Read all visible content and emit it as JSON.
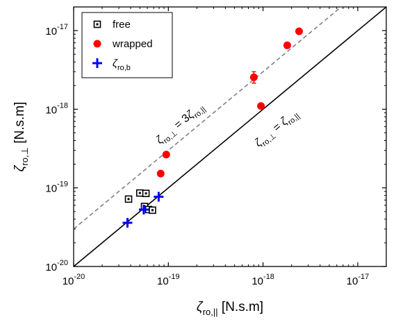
{
  "chart_data": {
    "type": "scatter",
    "xscale": "log",
    "yscale": "log",
    "xlim": [
      1e-20,
      2e-17
    ],
    "ylim": [
      1e-20,
      2e-17
    ],
    "xlabel": {
      "symbol": "ζ",
      "sub": "ro,||",
      "unit": " [N.s.m]"
    },
    "ylabel": {
      "symbol": "ζ",
      "sub": "ro,⊥",
      "unit": " [N.s.m]"
    },
    "xticks": [
      {
        "value": 1e-20,
        "mant": "10",
        "exp": "-20"
      },
      {
        "value": 1e-19,
        "mant": "10",
        "exp": "-19"
      },
      {
        "value": 1e-18,
        "mant": "10",
        "exp": "-18"
      },
      {
        "value": 1e-17,
        "mant": "10",
        "exp": "-17"
      }
    ],
    "yticks": [
      {
        "value": 1e-20,
        "mant": "10",
        "exp": "-20"
      },
      {
        "value": 1e-19,
        "mant": "10",
        "exp": "-19"
      },
      {
        "value": 1e-18,
        "mant": "10",
        "exp": "-18"
      },
      {
        "value": 1e-17,
        "mant": "10",
        "exp": "-17"
      }
    ],
    "series": [
      {
        "name": "free",
        "marker": "open-square",
        "color": "#000000",
        "points": [
          {
            "x": 3.8e-20,
            "y": 7.2e-20
          },
          {
            "x": 5e-20,
            "y": 8.6e-20
          },
          {
            "x": 5.8e-20,
            "y": 8.5e-20
          },
          {
            "x": 5.6e-20,
            "y": 5.8e-20
          },
          {
            "x": 6.2e-20,
            "y": 5.3e-20
          },
          {
            "x": 6.8e-20,
            "y": 5.2e-20
          }
        ]
      },
      {
        "name": "wrapped",
        "marker": "filled-circle",
        "color": "#ff0000",
        "points": [
          {
            "x": 8.3e-20,
            "y": 1.52e-19
          },
          {
            "x": 9.5e-20,
            "y": 2.65e-19
          },
          {
            "x": 8e-19,
            "y": 2.55e-18,
            "yerr_low": 2.15e-18,
            "yerr_high": 3e-18
          },
          {
            "x": 9.5e-19,
            "y": 1.1e-18
          },
          {
            "x": 1.8e-18,
            "y": 6.5e-18
          },
          {
            "x": 2.4e-18,
            "y": 9.8e-18
          }
        ]
      },
      {
        "name": "ζ",
        "name_sub": "ro,b",
        "marker": "plus",
        "color": "#0000ff",
        "points": [
          {
            "x": 3.7e-20,
            "y": 3.6e-20
          },
          {
            "x": 5.5e-20,
            "y": 5.3e-20
          },
          {
            "x": 7.9e-20,
            "y": 7.7e-20
          }
        ]
      }
    ],
    "reference_lines": [
      {
        "slope_factor": 1,
        "style": "solid",
        "color": "#000000",
        "label_left": "ζ",
        "label_left_sub": "ro,⊥",
        "label_eq": " = ",
        "label_right": "ζ",
        "label_right_sub": "ro,||"
      },
      {
        "slope_factor": 3,
        "style": "dashed",
        "color": "#808080",
        "label_left": "ζ",
        "label_left_sub": "ro,⊥",
        "label_eq": " = 3",
        "label_right": "ζ",
        "label_right_sub": "ro,||"
      }
    ],
    "legend_position": "top-left"
  }
}
